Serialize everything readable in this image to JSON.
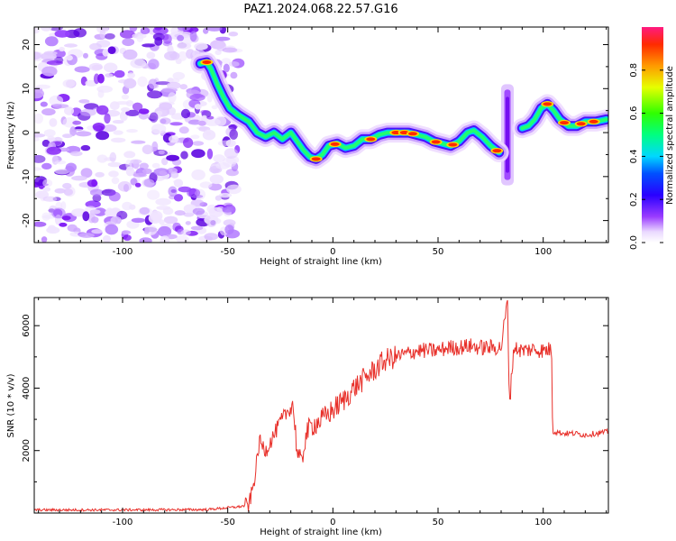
{
  "title": "PAZ1.2024.068.22.57.G16",
  "colors": {
    "snr_line": "#e8302a",
    "axis": "#000000"
  },
  "chart_data": [
    {
      "type": "heatmap",
      "xlabel": "Height of straight line (km)",
      "ylabel": "Frequency (Hz)",
      "xlim": [
        -142,
        131
      ],
      "ylim": [
        -25,
        24
      ],
      "xticks": [
        -100,
        -50,
        0,
        50,
        100
      ],
      "xtick_labels": [
        "-100",
        "-50",
        "0",
        "50",
        "100"
      ],
      "yticks": [
        20,
        10,
        0,
        -10,
        -20
      ],
      "ytick_labels": [
        "20",
        "10",
        "0",
        "-10",
        "-20"
      ],
      "noise_region_x": [
        -142,
        -45
      ],
      "trace": [
        {
          "x": -63,
          "y": 15.7
        },
        {
          "x": -60,
          "y": 16
        },
        {
          "x": -58,
          "y": 14.5
        },
        {
          "x": -55,
          "y": 11
        },
        {
          "x": -52,
          "y": 8
        },
        {
          "x": -49,
          "y": 5.5
        },
        {
          "x": -45,
          "y": 4
        },
        {
          "x": -40,
          "y": 2.5
        },
        {
          "x": -36,
          "y": 0
        },
        {
          "x": -32,
          "y": -1
        },
        {
          "x": -28,
          "y": 0
        },
        {
          "x": -24,
          "y": -1.5
        },
        {
          "x": -20,
          "y": 0
        },
        {
          "x": -17,
          "y": -2
        },
        {
          "x": -14,
          "y": -4
        },
        {
          "x": -11,
          "y": -5.5
        },
        {
          "x": -8,
          "y": -6
        },
        {
          "x": -5,
          "y": -5
        },
        {
          "x": -2,
          "y": -3
        },
        {
          "x": 2,
          "y": -2.5
        },
        {
          "x": 6,
          "y": -3.5
        },
        {
          "x": 10,
          "y": -3
        },
        {
          "x": 14,
          "y": -1.5
        },
        {
          "x": 18,
          "y": -1.5
        },
        {
          "x": 22,
          "y": -0.5
        },
        {
          "x": 26,
          "y": 0
        },
        {
          "x": 30,
          "y": 0
        },
        {
          "x": 36,
          "y": 0
        },
        {
          "x": 40,
          "y": -0.5
        },
        {
          "x": 44,
          "y": -1
        },
        {
          "x": 48,
          "y": -2
        },
        {
          "x": 52,
          "y": -2.5
        },
        {
          "x": 56,
          "y": -3
        },
        {
          "x": 60,
          "y": -2
        },
        {
          "x": 64,
          "y": 0
        },
        {
          "x": 67,
          "y": 0.5
        },
        {
          "x": 71,
          "y": -1
        },
        {
          "x": 75,
          "y": -3
        },
        {
          "x": 79,
          "y": -4.5
        }
      ],
      "trace_after_gap": [
        {
          "x": 90,
          "y": 1
        },
        {
          "x": 93,
          "y": 1.5
        },
        {
          "x": 96,
          "y": 3
        },
        {
          "x": 99,
          "y": 5.5
        },
        {
          "x": 102,
          "y": 6.5
        },
        {
          "x": 105,
          "y": 5
        },
        {
          "x": 108,
          "y": 3
        },
        {
          "x": 112,
          "y": 1.5
        },
        {
          "x": 116,
          "y": 1.5
        },
        {
          "x": 120,
          "y": 2.5
        },
        {
          "x": 125,
          "y": 2.5
        },
        {
          "x": 130,
          "y": 3
        }
      ],
      "vertical_streak": {
        "x": 83,
        "y_from": -12,
        "y_to": 11
      },
      "colorbar": {
        "label": "Normalized spectral amplitude",
        "ticks": [
          0.0,
          0.2,
          0.4,
          0.6,
          0.8
        ],
        "tick_labels": [
          "0.0",
          "0.2",
          "0.4",
          "0.6",
          "0.8"
        ],
        "range": [
          0,
          1
        ]
      }
    },
    {
      "type": "line",
      "xlabel": "Height of straight line (km)",
      "ylabel": "SNR (10 * v/v)",
      "xlim": [
        -142,
        131
      ],
      "ylim": [
        0,
        6900
      ],
      "xticks": [
        -100,
        -50,
        0,
        50,
        100
      ],
      "xtick_labels": [
        "-100",
        "-50",
        "0",
        "50",
        "100"
      ],
      "yticks": [
        2000,
        4000,
        6000
      ],
      "ytick_labels": [
        "2000",
        "4000",
        "6000"
      ],
      "series": [
        {
          "x": [
            -142,
            -100,
            -60,
            -45,
            -40,
            -38,
            -36,
            -35,
            -32,
            -28,
            -25,
            -22,
            -19,
            -17,
            -15,
            -13,
            -10,
            -5,
            0,
            5,
            10,
            15,
            20,
            25,
            30,
            35,
            40,
            45,
            50,
            55,
            60,
            65,
            70,
            75,
            80,
            83,
            84,
            86,
            90,
            95,
            100,
            104,
            104.5,
            106,
            110,
            115,
            120,
            125,
            131
          ],
          "y": [
            100,
            100,
            110,
            200,
            250,
            800,
            1700,
            2300,
            2000,
            2500,
            2900,
            3200,
            3500,
            2000,
            1500,
            2500,
            2800,
            3000,
            3300,
            3600,
            4000,
            4300,
            4600,
            4900,
            5000,
            5100,
            5200,
            5200,
            5200,
            5300,
            5300,
            5350,
            5300,
            5300,
            5300,
            6800,
            3500,
            5300,
            5200,
            5250,
            5200,
            5250,
            2600,
            2600,
            2550,
            2550,
            2500,
            2550,
            2600
          ]
        }
      ]
    }
  ]
}
